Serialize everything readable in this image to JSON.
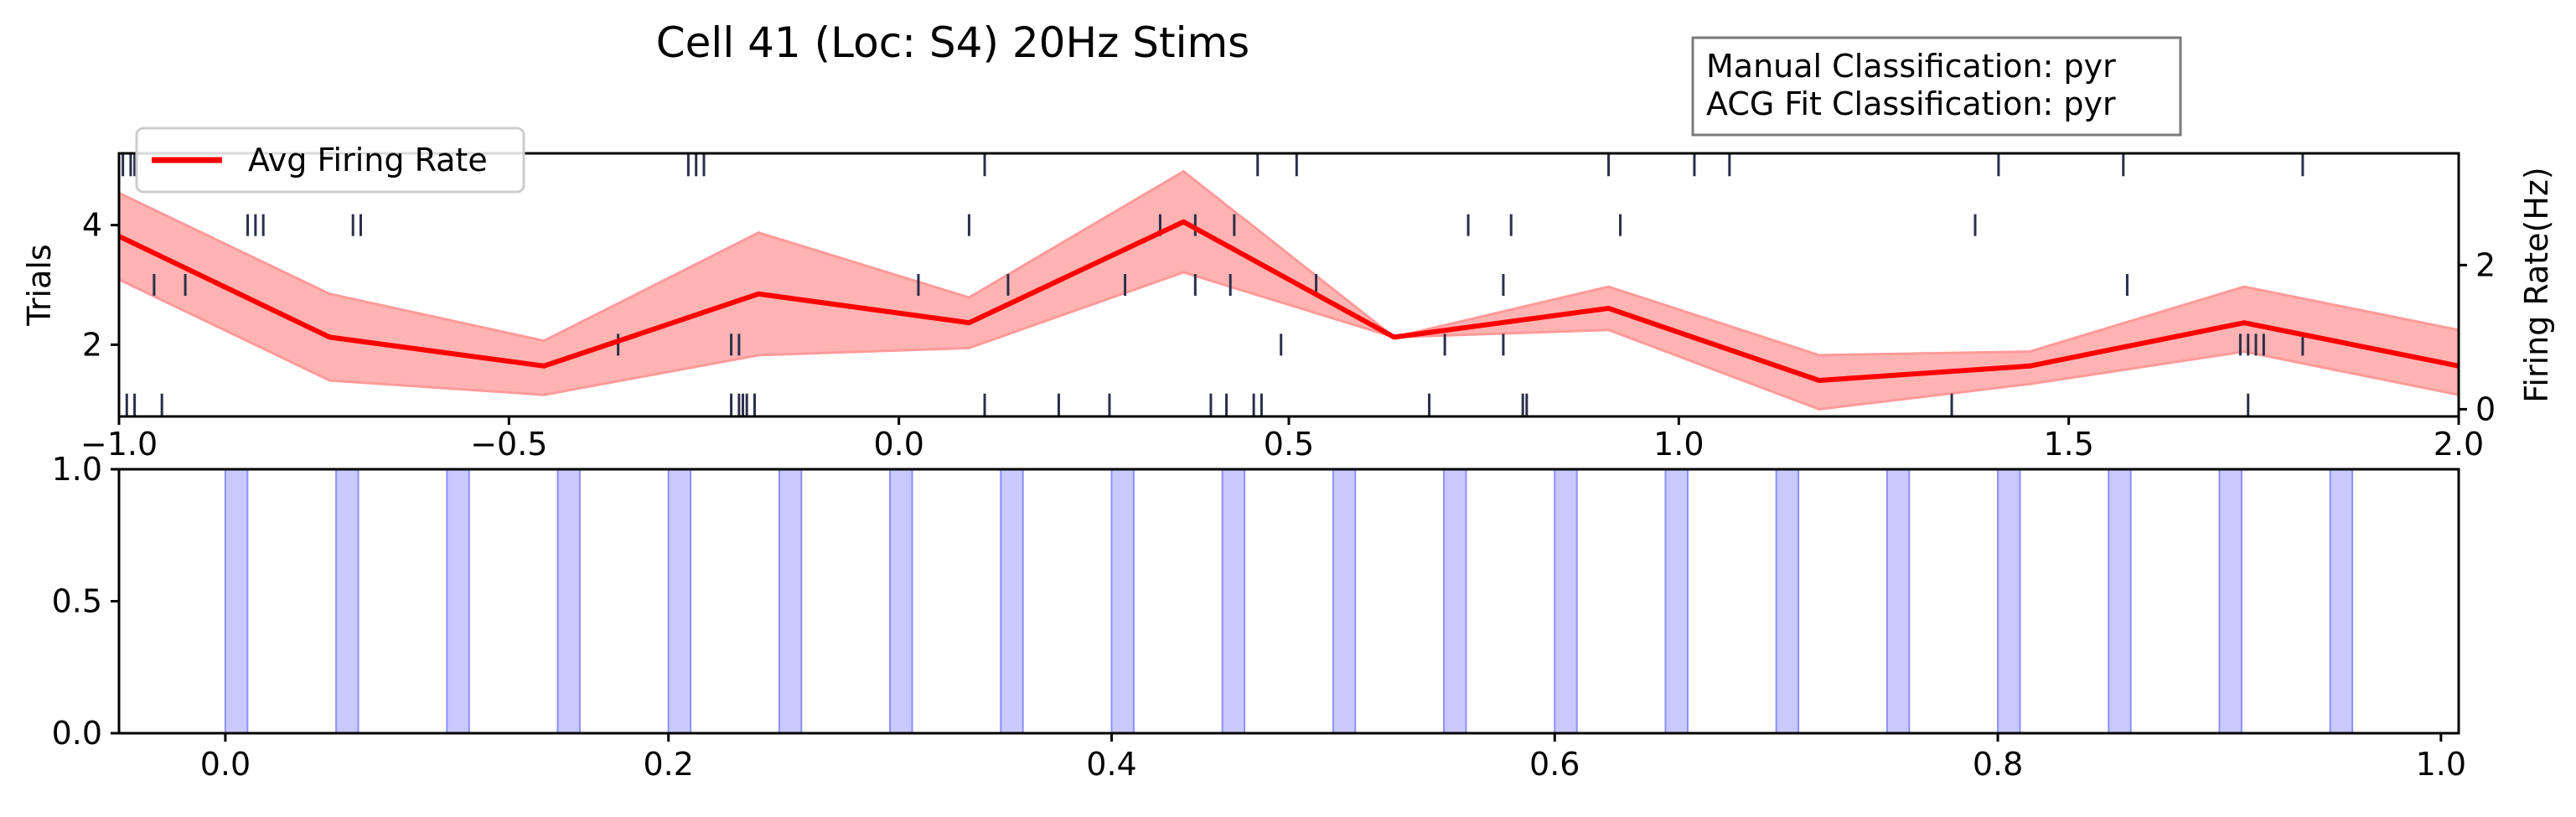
{
  "figure": {
    "title": "Cell 41 (Loc: S4) 20Hz Stims",
    "info_box": {
      "line1": "Manual Classification: pyr",
      "line2": "ACG Fit Classification: pyr"
    }
  },
  "colors": {
    "firing_line": "#ff0000",
    "firing_band": "#ff9a9a",
    "spike_ticks": "#2b2f4a",
    "stim_fill": "#c9c9ff",
    "stim_edge": "#8f8fff"
  },
  "chart_data": [
    {
      "type": "line",
      "subtype": "raster-with-firing-rate",
      "xlim": [
        -1.0,
        2.0
      ],
      "xticks": [
        "−1.0",
        "−0.5",
        "0.0",
        "0.5",
        "1.0",
        "1.5",
        "2.0"
      ],
      "xtick_values": [
        -1.0,
        -0.5,
        0.0,
        0.5,
        1.0,
        1.5,
        2.0
      ],
      "ylabel_left": "Trials",
      "ylim_left": [
        0.8,
        5.2
      ],
      "yticks_left": [
        "2",
        "4"
      ],
      "ytick_values_left": [
        2,
        4
      ],
      "ylabel_right": "Firing Rate(Hz)",
      "ylim_right": [
        -0.1,
        3.55
      ],
      "yticks_right": [
        "0",
        "2"
      ],
      "ytick_values_right": [
        0,
        2
      ],
      "legend": {
        "label": "Avg Firing Rate",
        "placement": "upper-left"
      },
      "grid": false,
      "series": [
        {
          "name": "Avg Firing Rate",
          "x": [
            -1.0,
            -0.73,
            -0.455,
            -0.18,
            0.09,
            0.365,
            0.635,
            0.91,
            1.18,
            1.45,
            1.725,
            2.0
          ],
          "y": [
            2.4,
            1.0,
            0.6,
            1.6,
            1.2,
            2.6,
            1.0,
            1.4,
            0.4,
            0.6,
            1.2,
            0.6
          ],
          "band_upper": [
            3.0,
            1.6,
            0.95,
            2.45,
            1.55,
            3.3,
            1.0,
            1.7,
            0.75,
            0.8,
            1.7,
            1.1
          ],
          "band_lower": [
            1.8,
            0.4,
            0.2,
            0.75,
            0.85,
            1.9,
            1.0,
            1.1,
            0.0,
            0.35,
            0.8,
            0.2
          ]
        }
      ],
      "raster": [
        {
          "trial": 5,
          "times": [
            -0.995,
            -0.985,
            -0.98,
            -0.27,
            -0.26,
            -0.25,
            0.11,
            0.46,
            0.51,
            0.91,
            1.02,
            1.065,
            1.41,
            1.57,
            1.8
          ]
        },
        {
          "trial": 4,
          "times": [
            -0.835,
            -0.825,
            -0.815,
            -0.7,
            -0.69,
            0.09,
            0.335,
            0.38,
            0.43,
            0.73,
            0.785,
            0.925,
            1.38
          ]
        },
        {
          "trial": 3,
          "times": [
            -0.955,
            -0.915,
            0.025,
            0.14,
            0.29,
            0.38,
            0.425,
            0.535,
            0.775,
            1.575
          ]
        },
        {
          "trial": 2,
          "times": [
            -0.36,
            -0.215,
            -0.205,
            0.49,
            0.7,
            0.775,
            1.72,
            1.73,
            1.74,
            1.75,
            1.8
          ]
        },
        {
          "trial": 1,
          "times": [
            -0.99,
            -0.98,
            -0.945,
            -0.215,
            -0.205,
            -0.2,
            -0.195,
            -0.185,
            0.11,
            0.205,
            0.27,
            0.4,
            0.42,
            0.455,
            0.465,
            0.68,
            0.8,
            0.805,
            1.35,
            1.73
          ]
        }
      ]
    },
    {
      "type": "bar",
      "subtype": "stimulus-epochs",
      "xlim": [
        -0.048,
        1.008
      ],
      "xticks": [
        "0.0",
        "0.2",
        "0.4",
        "0.6",
        "0.8",
        "1.0"
      ],
      "xtick_values": [
        0.0,
        0.2,
        0.4,
        0.6,
        0.8,
        1.0
      ],
      "ylim": [
        0.0,
        1.0
      ],
      "yticks": [
        "0.0",
        "0.5",
        "1.0"
      ],
      "ytick_values": [
        0.0,
        0.5,
        1.0
      ],
      "grid": false,
      "stim_width": 0.01,
      "stim_starts": [
        0.0,
        0.05,
        0.1,
        0.15,
        0.2,
        0.25,
        0.3,
        0.35,
        0.4,
        0.45,
        0.5,
        0.55,
        0.6,
        0.65,
        0.7,
        0.75,
        0.8,
        0.85,
        0.9,
        0.95
      ]
    }
  ]
}
